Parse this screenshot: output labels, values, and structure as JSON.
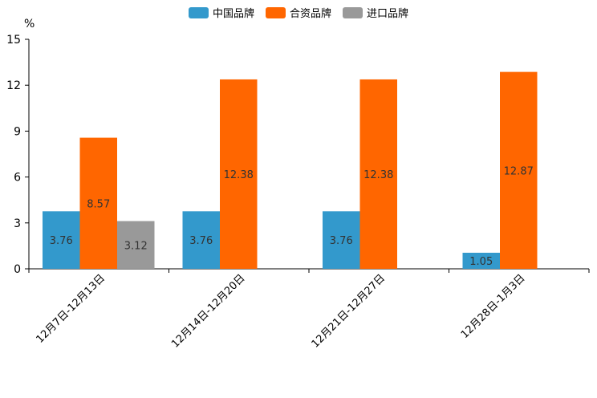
{
  "chart_data": {
    "type": "bar",
    "title": "",
    "xlabel": "",
    "ylabel": "%",
    "ylim": [
      0,
      15
    ],
    "yticks": [
      0,
      3,
      6,
      9,
      12,
      15
    ],
    "categories": [
      "12月7日-12月13日",
      "12月14日-12月20日",
      "12月21日-12月27日",
      "12月28日-1月3日"
    ],
    "series": [
      {
        "name": "中国品牌",
        "color": "#3399cc",
        "values": [
          3.76,
          3.76,
          3.76,
          1.05
        ]
      },
      {
        "name": "合资品牌",
        "color": "#ff6600",
        "values": [
          8.57,
          12.38,
          12.38,
          12.87
        ]
      },
      {
        "name": "进口品牌",
        "color": "#999999",
        "values": [
          3.12,
          null,
          null,
          null
        ]
      }
    ],
    "legend_position": "top-center",
    "grid": false
  }
}
